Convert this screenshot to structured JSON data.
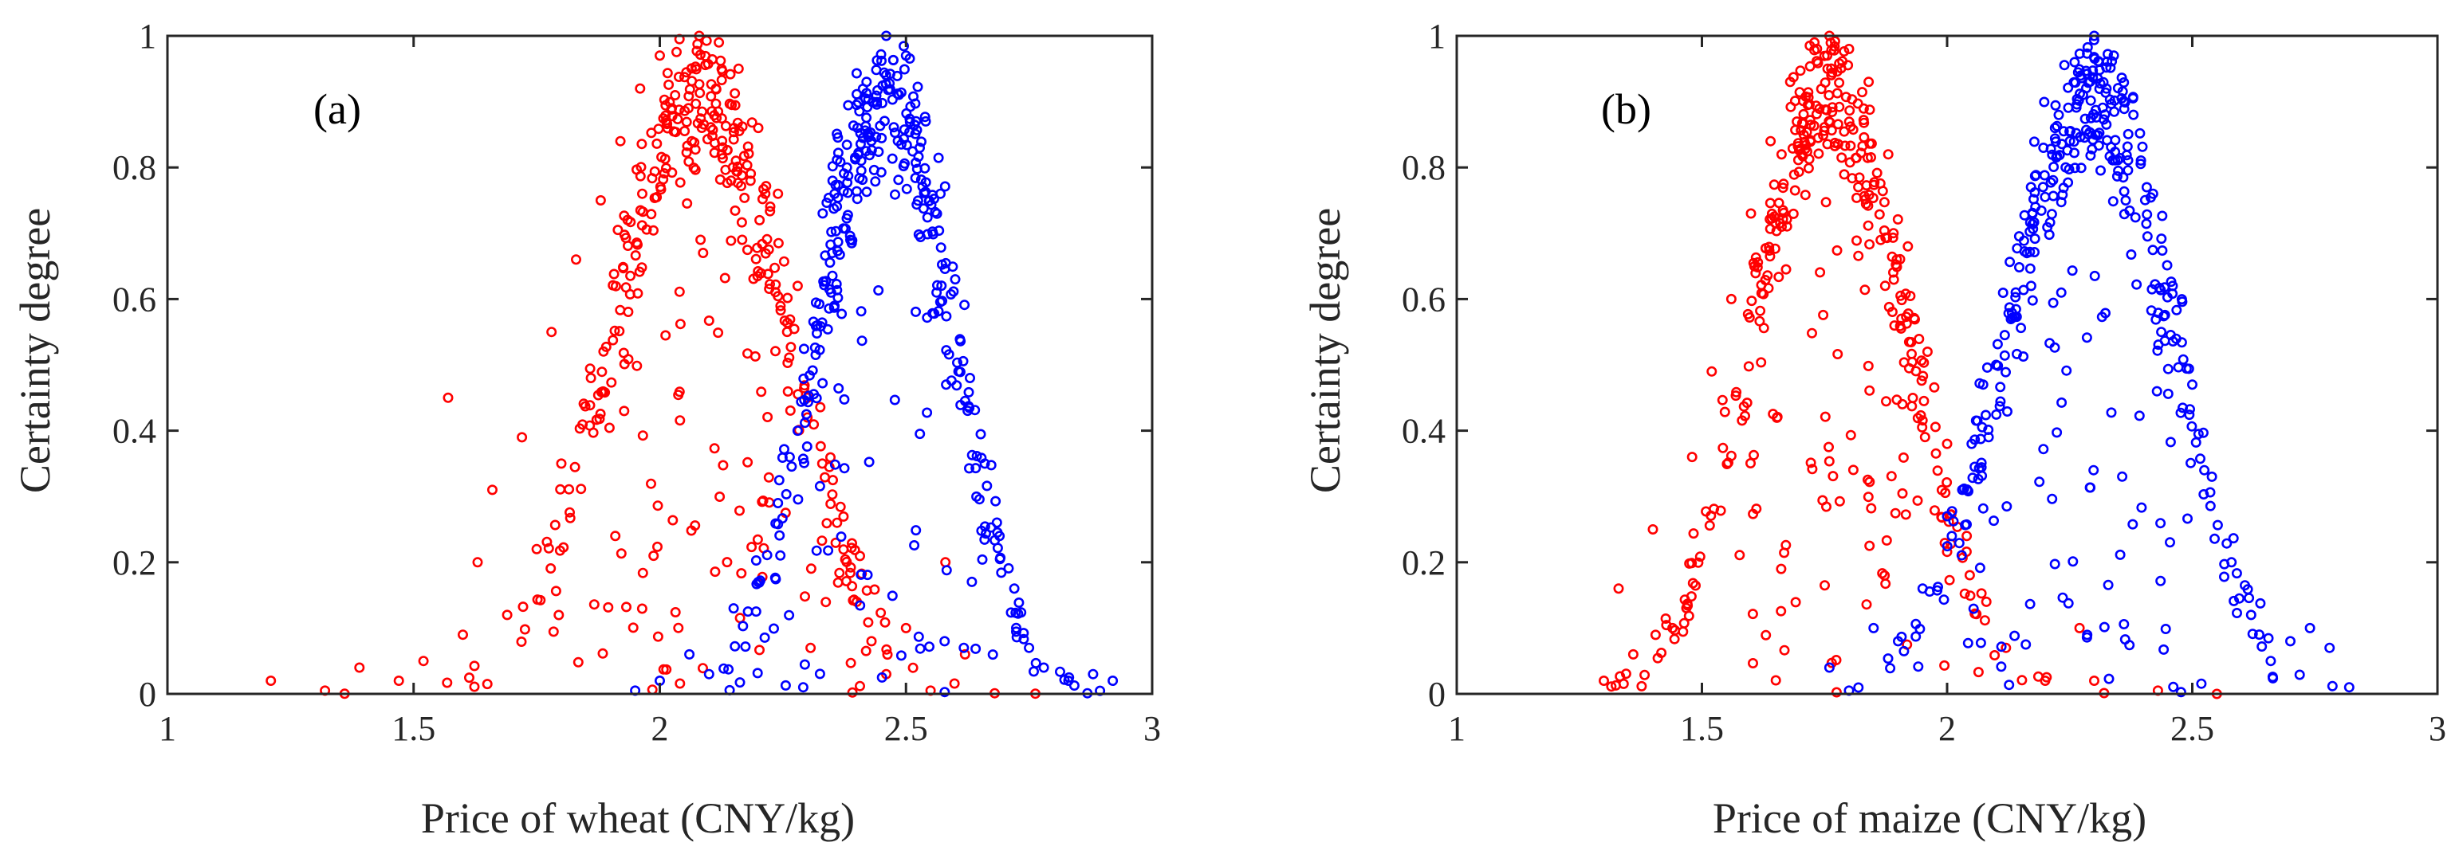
{
  "figure": {
    "panels": [
      {
        "panel_label": "(a)",
        "xlabel": "Price of wheat (CNY/kg)",
        "ylabel": "Certainty degree"
      },
      {
        "panel_label": "(b)",
        "xlabel": "Price of maize (CNY/kg)",
        "ylabel": "Certainty degree"
      }
    ]
  },
  "colors": {
    "series_1": "#ff0000",
    "series_2": "#0000ff",
    "axes": "#262626"
  },
  "chart_data": [
    {
      "type": "scatter",
      "title": "",
      "panel_label": "(a)",
      "xlabel": "Price of wheat (CNY/kg)",
      "ylabel": "Certainty degree",
      "xlim": [
        1,
        3
      ],
      "ylim": [
        0,
        1
      ],
      "xticks": [
        1,
        1.5,
        2,
        2.5,
        3
      ],
      "xtick_labels": [
        "1",
        "1.5",
        "2",
        "2.5",
        "3"
      ],
      "yticks": [
        0,
        0.2,
        0.4,
        0.6,
        0.8,
        1
      ],
      "ytick_labels": [
        "0",
        "0.2",
        "0.4",
        "0.6",
        "0.8",
        "1"
      ],
      "marker": "open circle",
      "series": [
        {
          "name": "red cloud",
          "color": "#ff0000",
          "center": 2.08,
          "spread": 0.175,
          "count": 380,
          "points": [
            [
              1.21,
              0.02
            ],
            [
              1.32,
              0.005
            ],
            [
              1.39,
              0.04
            ],
            [
              1.47,
              0.02
            ],
            [
              1.52,
              0.05
            ],
            [
              1.57,
              0.45
            ],
            [
              1.6,
              0.09
            ],
            [
              1.63,
              0.2
            ],
            [
              1.66,
              0.31
            ],
            [
              1.69,
              0.12
            ],
            [
              1.72,
              0.39
            ],
            [
              1.75,
              0.22
            ],
            [
              1.78,
              0.55
            ],
            [
              1.8,
              0.35
            ],
            [
              1.83,
              0.66
            ],
            [
              1.86,
              0.48
            ],
            [
              1.88,
              0.75
            ],
            [
              1.92,
              0.84
            ],
            [
              1.96,
              0.92
            ],
            [
              2.0,
              0.97
            ],
            [
              2.04,
              0.995
            ],
            [
              2.08,
              1.0
            ],
            [
              2.12,
              0.99
            ],
            [
              2.16,
              0.95
            ],
            [
              2.2,
              0.86
            ],
            [
              2.24,
              0.76
            ],
            [
              2.28,
              0.62
            ],
            [
              2.3,
              0.45
            ],
            [
              2.33,
              0.35
            ],
            [
              2.36,
              0.26
            ],
            [
              2.4,
              0.14
            ],
            [
              2.43,
              0.08
            ],
            [
              2.46,
              0.03
            ],
            [
              2.5,
              0.1
            ],
            [
              2.55,
              0.005
            ],
            [
              2.58,
              0.2
            ],
            [
              2.62,
              0.06
            ]
          ]
        },
        {
          "name": "blue cloud",
          "color": "#0000ff",
          "center": 2.46,
          "spread": 0.135,
          "count": 360,
          "points": [
            [
              1.95,
              0.005
            ],
            [
              2.0,
              0.02
            ],
            [
              2.06,
              0.06
            ],
            [
              2.1,
              0.03
            ],
            [
              2.15,
              0.13
            ],
            [
              2.2,
              0.17
            ],
            [
              2.24,
              0.29
            ],
            [
              2.28,
              0.4
            ],
            [
              2.32,
              0.56
            ],
            [
              2.35,
              0.67
            ],
            [
              2.38,
              0.8
            ],
            [
              2.42,
              0.93
            ],
            [
              2.46,
              1.0
            ],
            [
              2.5,
              0.97
            ],
            [
              2.54,
              0.87
            ],
            [
              2.57,
              0.76
            ],
            [
              2.6,
              0.63
            ],
            [
              2.63,
              0.48
            ],
            [
              2.66,
              0.35
            ],
            [
              2.69,
              0.24
            ],
            [
              2.72,
              0.16
            ],
            [
              2.75,
              0.07
            ],
            [
              2.78,
              0.04
            ],
            [
              2.83,
              0.02
            ],
            [
              2.88,
              0.03
            ],
            [
              2.92,
              0.02
            ]
          ]
        }
      ]
    },
    {
      "type": "scatter",
      "title": "",
      "panel_label": "(b)",
      "xlabel": "Price of maize (CNY/kg)",
      "ylabel": "Certainty degree",
      "xlim": [
        1,
        3
      ],
      "ylim": [
        0,
        1
      ],
      "xticks": [
        1,
        1.5,
        2,
        2.5,
        3
      ],
      "xtick_labels": [
        "1",
        "1.5",
        "2",
        "2.5",
        "3"
      ],
      "yticks": [
        0,
        0.2,
        0.4,
        0.6,
        0.8,
        1
      ],
      "ytick_labels": [
        "0",
        "0.2",
        "0.4",
        "0.6",
        "0.8",
        "1"
      ],
      "marker": "open circle",
      "series": [
        {
          "name": "red cloud",
          "color": "#ff0000",
          "center": 1.76,
          "spread": 0.155,
          "count": 380,
          "points": [
            [
              1.3,
              0.02
            ],
            [
              1.33,
              0.16
            ],
            [
              1.36,
              0.06
            ],
            [
              1.4,
              0.25
            ],
            [
              1.44,
              0.1
            ],
            [
              1.48,
              0.36
            ],
            [
              1.52,
              0.49
            ],
            [
              1.56,
              0.6
            ],
            [
              1.6,
              0.73
            ],
            [
              1.64,
              0.84
            ],
            [
              1.68,
              0.93
            ],
            [
              1.72,
              0.985
            ],
            [
              1.76,
              1.0
            ],
            [
              1.8,
              0.98
            ],
            [
              1.84,
              0.93
            ],
            [
              1.88,
              0.82
            ],
            [
              1.92,
              0.68
            ],
            [
              1.96,
              0.52
            ],
            [
              2.0,
              0.38
            ],
            [
              2.04,
              0.24
            ],
            [
              2.08,
              0.14
            ],
            [
              2.12,
              0.07
            ],
            [
              2.2,
              0.02
            ],
            [
              2.27,
              0.1
            ],
            [
              2.3,
              0.02
            ],
            [
              2.43,
              0.005
            ],
            [
              2.55,
              0.0
            ]
          ]
        },
        {
          "name": "blue cloud",
          "color": "#0000ff",
          "center": 2.29,
          "spread": 0.165,
          "count": 380,
          "points": [
            [
              1.76,
              0.04
            ],
            [
              1.8,
              0.005
            ],
            [
              1.85,
              0.1
            ],
            [
              1.9,
              0.08
            ],
            [
              1.95,
              0.16
            ],
            [
              2.0,
              0.27
            ],
            [
              2.05,
              0.38
            ],
            [
              2.1,
              0.5
            ],
            [
              2.14,
              0.61
            ],
            [
              2.18,
              0.74
            ],
            [
              2.22,
              0.86
            ],
            [
              2.26,
              0.96
            ],
            [
              2.3,
              1.0
            ],
            [
              2.34,
              0.97
            ],
            [
              2.38,
              0.88
            ],
            [
              2.42,
              0.76
            ],
            [
              2.46,
              0.62
            ],
            [
              2.5,
              0.47
            ],
            [
              2.54,
              0.33
            ],
            [
              2.58,
              0.2
            ],
            [
              2.62,
              0.12
            ],
            [
              2.66,
              0.05
            ],
            [
              2.7,
              0.08
            ],
            [
              2.74,
              0.1
            ],
            [
              2.78,
              0.07
            ],
            [
              2.82,
              0.01
            ]
          ]
        }
      ]
    }
  ]
}
